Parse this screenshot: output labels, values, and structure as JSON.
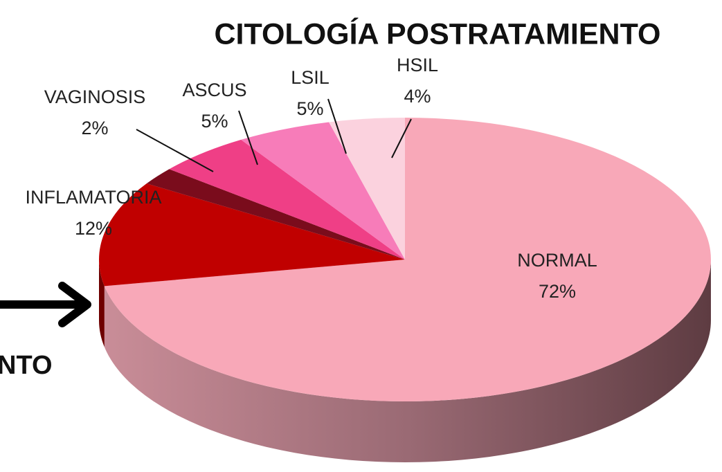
{
  "chart_data": {
    "type": "pie",
    "title": "CITOLOGÍA POSTRATAMIENTO",
    "categories": [
      "NORMAL",
      "INFLAMATORIA",
      "VAGINOSIS",
      "ASCUS",
      "LSIL",
      "HSIL"
    ],
    "values": [
      72,
      12,
      2,
      5,
      5,
      4
    ],
    "value_labels": [
      "72%",
      "12%",
      "2%",
      "5%",
      "5%",
      "4%"
    ],
    "colors": [
      "#f8a8b8",
      "#c00000",
      "#7a0c1c",
      "#ef3f86",
      "#f77cb9",
      "#fbd2de"
    ]
  },
  "overlay": {
    "text": "NTO"
  }
}
